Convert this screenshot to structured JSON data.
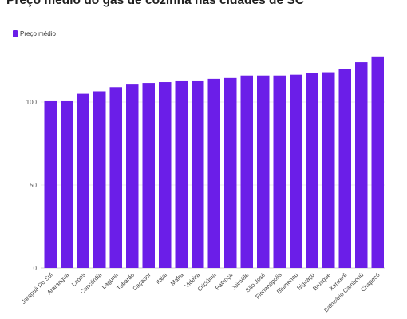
{
  "chart_data": {
    "type": "bar",
    "title": "Preço médio do gás de cozinha nas cidades de SC",
    "legend": {
      "label": "Preço médio",
      "placement": "top-left"
    },
    "color": "#6b1ee8",
    "categories": [
      "Jaraguá Do Sul",
      "Araranguá",
      "Lages",
      "Concórdia",
      "Laguna",
      "Tubarão",
      "Caçador",
      "Itajaí",
      "Mafra",
      "Videira",
      "Criciúma",
      "Palhoça",
      "Joinville",
      "São José",
      "Florianópolis",
      "Blumenau",
      "Biguaçu",
      "Brusque",
      "Xanxerê",
      "Balneário Camboriú",
      "Chapecó"
    ],
    "series": [
      {
        "name": "Preço médio",
        "values": [
          100.5,
          100.5,
          105,
          106.5,
          109,
          111,
          111.5,
          112,
          113,
          113,
          114,
          114.5,
          116,
          116,
          116,
          116.5,
          117.5,
          118,
          120,
          124,
          127.5
        ]
      }
    ],
    "y_ticks": [
      0,
      50,
      100
    ],
    "ylim": [
      0,
      135
    ],
    "grid": true
  }
}
